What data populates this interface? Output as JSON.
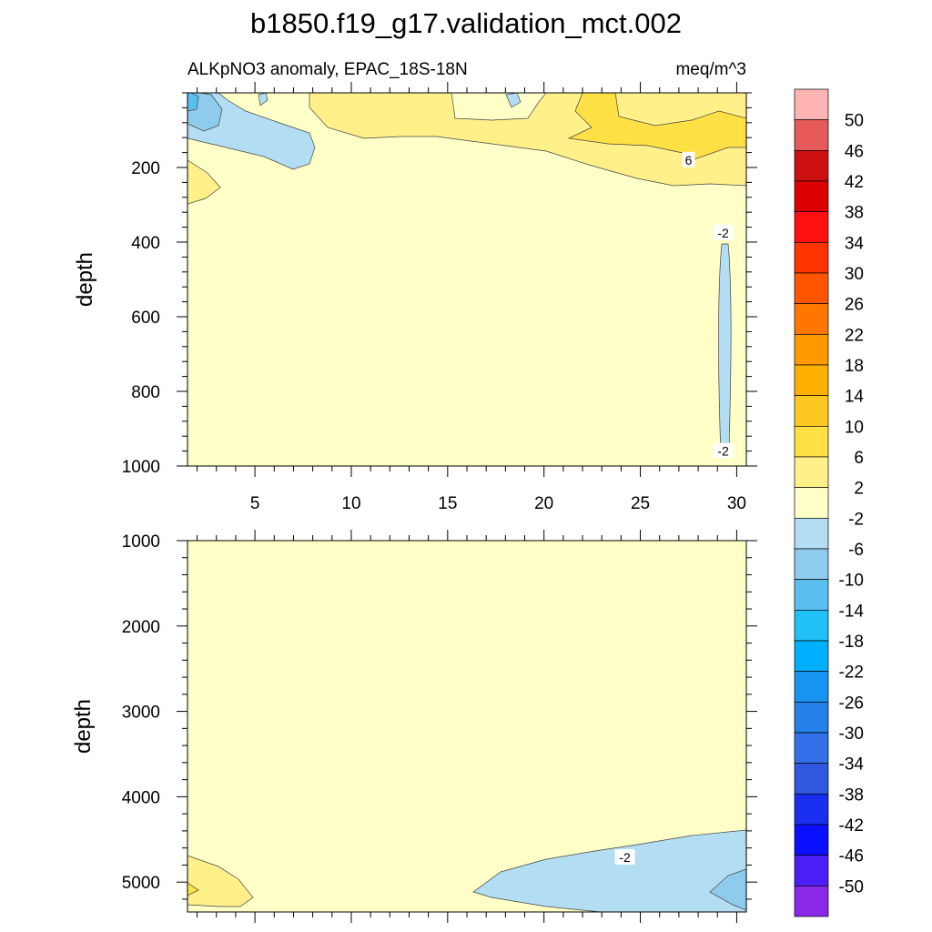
{
  "chart_data": {
    "type": "contour",
    "title": "b1850.f19_g17.validation_mct.002",
    "subtitle_left": "ALKpNO3 anomaly, EPAC_18S-18N",
    "subtitle_right": "meq/m^3",
    "ylabel": "depth",
    "x": {
      "range": [
        1.5,
        30.5
      ],
      "ticks": [
        5,
        10,
        15,
        20,
        25,
        30
      ],
      "tick_labels": [
        "5",
        "10",
        "15",
        "20",
        "25",
        "30"
      ]
    },
    "panels": [
      {
        "name": "upper",
        "ylim": [
          0,
          1000
        ],
        "yticks": [
          200,
          400,
          600,
          800,
          1000
        ],
        "ytick_labels": [
          "200",
          "400",
          "600",
          "800",
          "1000"
        ],
        "contour_labels": [
          {
            "text": "6",
            "x": 27.5,
            "y": 180
          },
          {
            "text": "-2",
            "x": 29.3,
            "y": 375
          },
          {
            "text": "-2",
            "x": 29.3,
            "y": 960
          }
        ]
      },
      {
        "name": "lower",
        "ylim": [
          1000,
          5350
        ],
        "yticks": [
          1000,
          2000,
          3000,
          4000,
          5000
        ],
        "ytick_labels": [
          "1000",
          "2000",
          "3000",
          "4000",
          "5000"
        ],
        "contour_labels": [
          {
            "text": "-2",
            "x": 24.2,
            "y": 4710
          }
        ]
      }
    ],
    "colorbar": {
      "levels": [
        "50",
        "46",
        "42",
        "38",
        "34",
        "30",
        "26",
        "22",
        "18",
        "14",
        "10",
        "6",
        "2",
        "-2",
        "-6",
        "-10",
        "-14",
        "-18",
        "-22",
        "-26",
        "-30",
        "-34",
        "-38",
        "-42",
        "-46",
        "-50"
      ],
      "colors": [
        "#ffb3b3",
        "#e65a5a",
        "#cc1010",
        "#dd0000",
        "#ff1010",
        "#ff3300",
        "#ff5500",
        "#ff7700",
        "#ff9900",
        "#ffb000",
        "#ffc820",
        "#ffe045",
        "#fff08a",
        "#ffffc8",
        "#b3ddf2",
        "#8ecbec",
        "#5ac0f0",
        "#20c0f8",
        "#00b0ff",
        "#1894f0",
        "#2580ea",
        "#3270e8",
        "#2f58e0",
        "#1a2ef0",
        "#0a10ff",
        "#4a1ff5",
        "#8a28e8"
      ]
    }
  }
}
